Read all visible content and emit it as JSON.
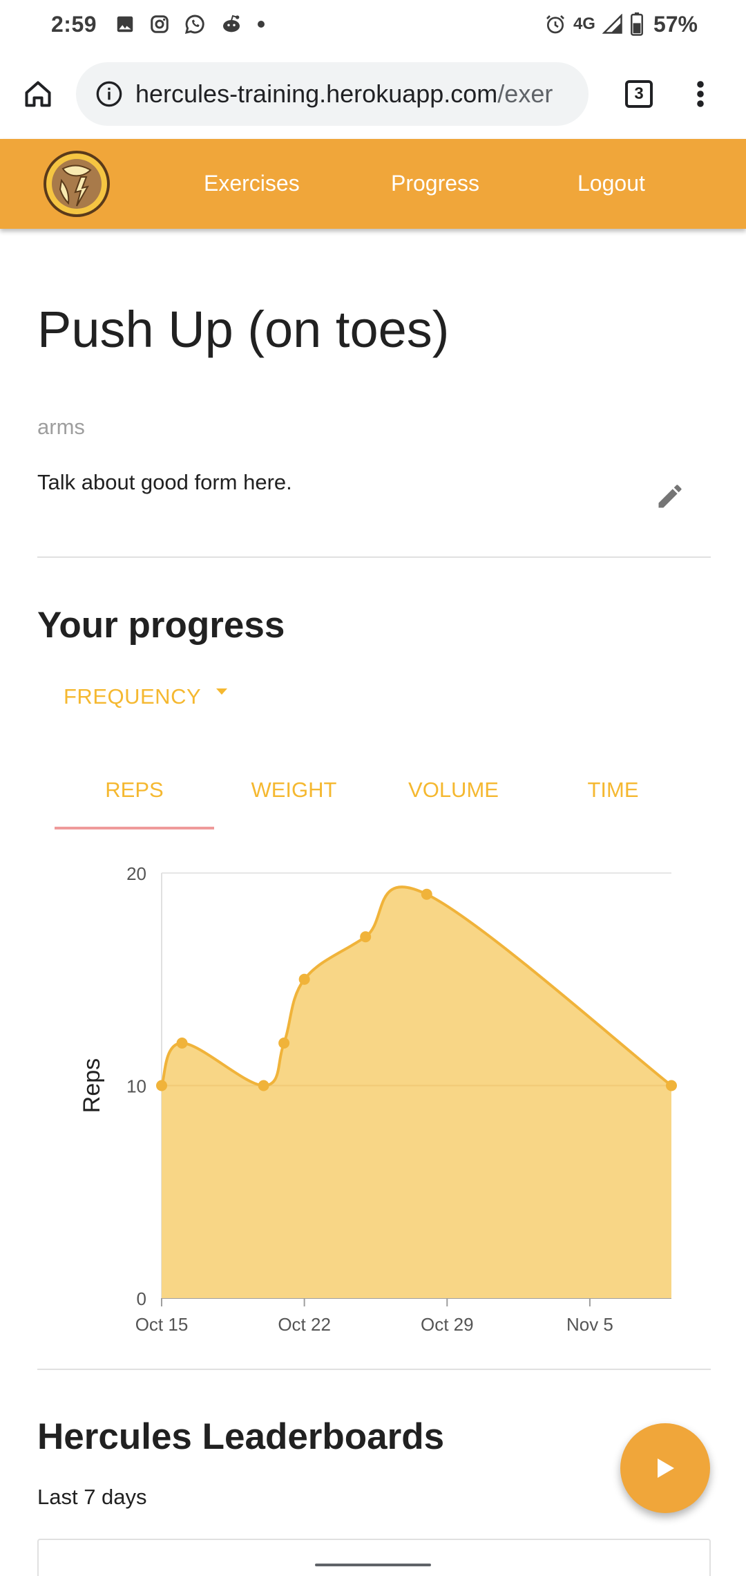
{
  "status_bar": {
    "time": "2:59",
    "network": "4G",
    "battery": "57%"
  },
  "browser": {
    "url_main": "hercules-training.herokuapp.com",
    "url_rest": "/exer",
    "tab_count": "3"
  },
  "nav": {
    "links": [
      "Exercises",
      "Progress",
      "Logout"
    ]
  },
  "exercise": {
    "title": "Push Up (on toes)",
    "category": "arms",
    "description": "Talk about good form here."
  },
  "progress": {
    "title": "Your progress",
    "frequency_label": "FREQUENCY",
    "tabs": [
      "REPS",
      "WEIGHT",
      "VOLUME",
      "TIME"
    ],
    "active_tab": "REPS"
  },
  "chart_data": {
    "type": "area",
    "ylabel": "Reps",
    "ylim": [
      0,
      20
    ],
    "yticks": [
      0,
      10,
      20
    ],
    "xticks": [
      "Oct 15",
      "Oct 22",
      "Oct 29",
      "Nov 5"
    ],
    "x_days": [
      0,
      7,
      14,
      21
    ],
    "points": [
      {
        "day": 0,
        "value": 10
      },
      {
        "day": 1,
        "value": 12
      },
      {
        "day": 5,
        "value": 10
      },
      {
        "day": 6,
        "value": 12
      },
      {
        "day": 7,
        "value": 15
      },
      {
        "day": 10,
        "value": 17
      },
      {
        "day": 13,
        "value": 19
      },
      {
        "day": 25,
        "value": 10
      }
    ],
    "fill_color": "#f8d686",
    "line_color": "#f0b33a",
    "grid": true
  },
  "leaderboards": {
    "title": "Hercules Leaderboards",
    "subtitle": "Last 7 days"
  },
  "colors": {
    "brand": "#f0a63a",
    "accent_text": "#f5b830",
    "tab_indicator": "#ef9a9a"
  }
}
